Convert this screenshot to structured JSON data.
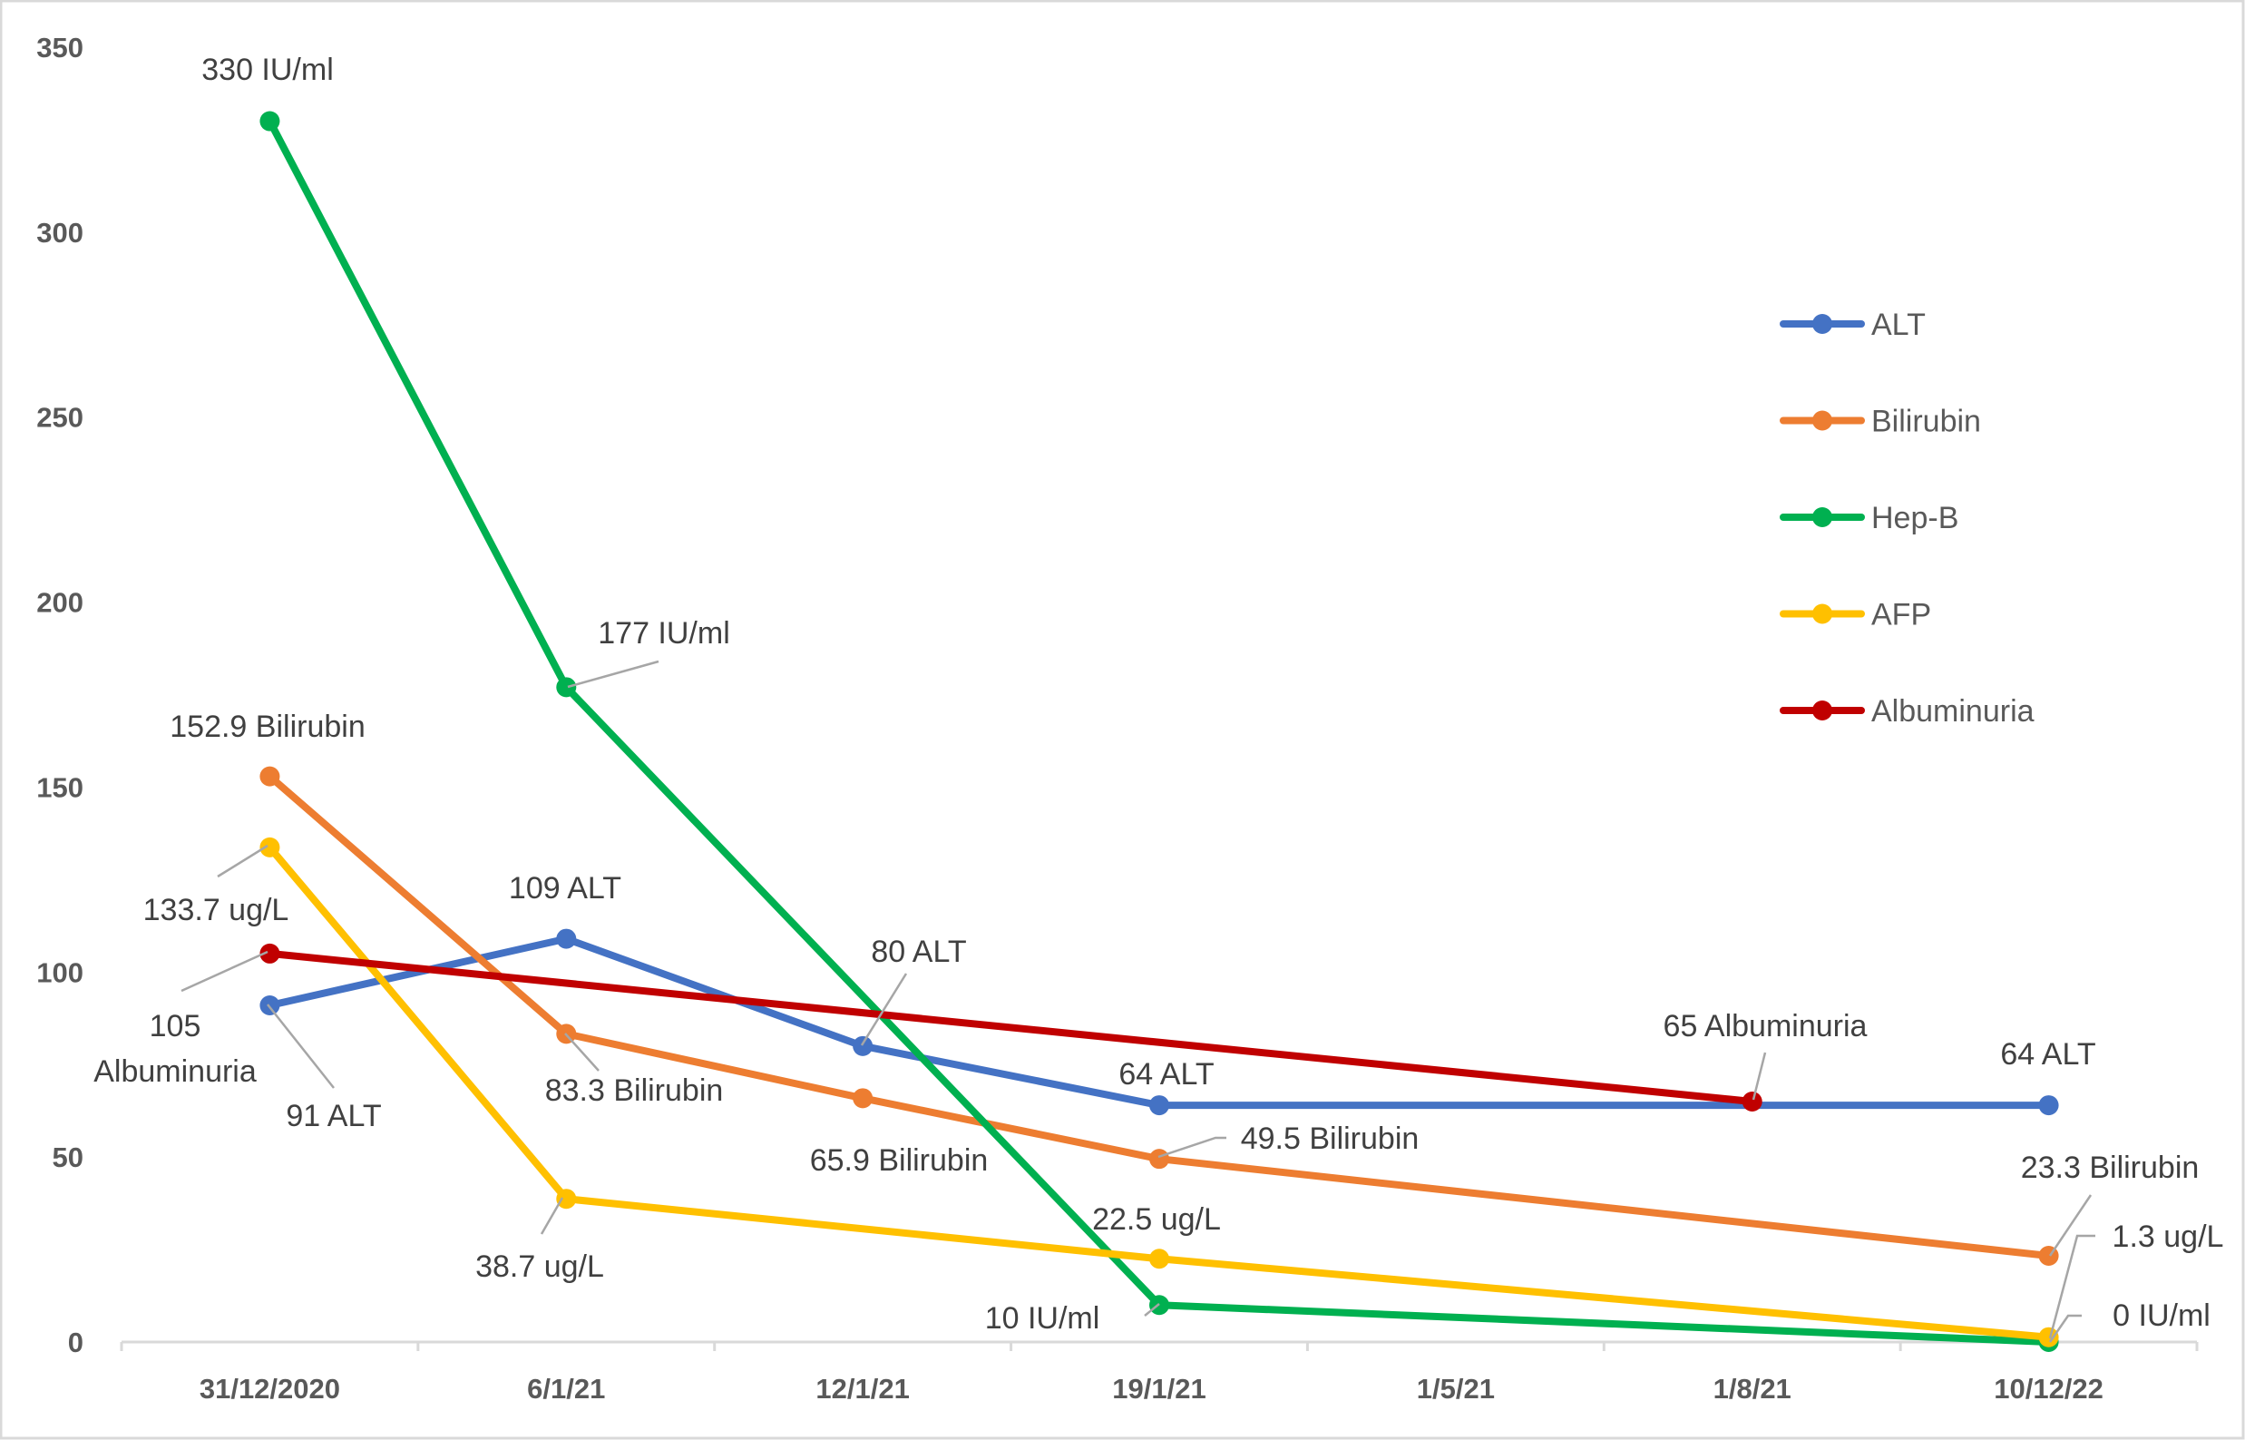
{
  "chart_data": {
    "type": "line",
    "title": "",
    "xlabel": "",
    "ylabel": "",
    "ylim": [
      0,
      350
    ],
    "yticks": [
      "0",
      "50",
      "100",
      "150",
      "200",
      "250",
      "300",
      "350"
    ],
    "categories": [
      "31/12/2020",
      "6/1/21",
      "12/1/21",
      "19/1/21",
      "1/5/21",
      "1/8/21",
      "10/12/22"
    ],
    "grid": false,
    "legend_position": "right",
    "series": [
      {
        "name": "ALT",
        "color": "#4472C4",
        "values": [
          91,
          109,
          80,
          64,
          null,
          null,
          64
        ],
        "labels": [
          "91 ALT",
          "109 ALT",
          "80 ALT",
          "64 ALT",
          null,
          null,
          "64 ALT"
        ]
      },
      {
        "name": "Bilirubin",
        "color": "#ED7D31",
        "values": [
          152.9,
          83.3,
          65.9,
          49.5,
          null,
          null,
          23.3
        ],
        "labels": [
          "152.9 Bilirubin",
          "83.3 Bilirubin",
          "65.9 Bilirubin",
          "49.5 Bilirubin",
          null,
          null,
          "23.3 Bilirubin"
        ]
      },
      {
        "name": "Hep-B",
        "color": "#00B050",
        "values": [
          330,
          177,
          null,
          10,
          null,
          null,
          0
        ],
        "labels": [
          "330 IU/ml",
          "177 IU/ml",
          null,
          "10 IU/ml",
          null,
          null,
          "0 IU/ml"
        ]
      },
      {
        "name": "AFP",
        "color": "#FFC000",
        "values": [
          133.7,
          38.7,
          null,
          22.5,
          null,
          null,
          1.3
        ],
        "labels": [
          "133.7 ug/L",
          "38.7 ug/L",
          null,
          "22.5 ug/L",
          null,
          null,
          "1.3 ug/L"
        ]
      },
      {
        "name": "Albuminuria",
        "color": "#C00000",
        "values": [
          105,
          null,
          null,
          null,
          null,
          65,
          null
        ],
        "labels": [
          [
            "105",
            "Albuminuria"
          ],
          null,
          null,
          null,
          null,
          "65 Albuminuria",
          null
        ]
      }
    ]
  }
}
